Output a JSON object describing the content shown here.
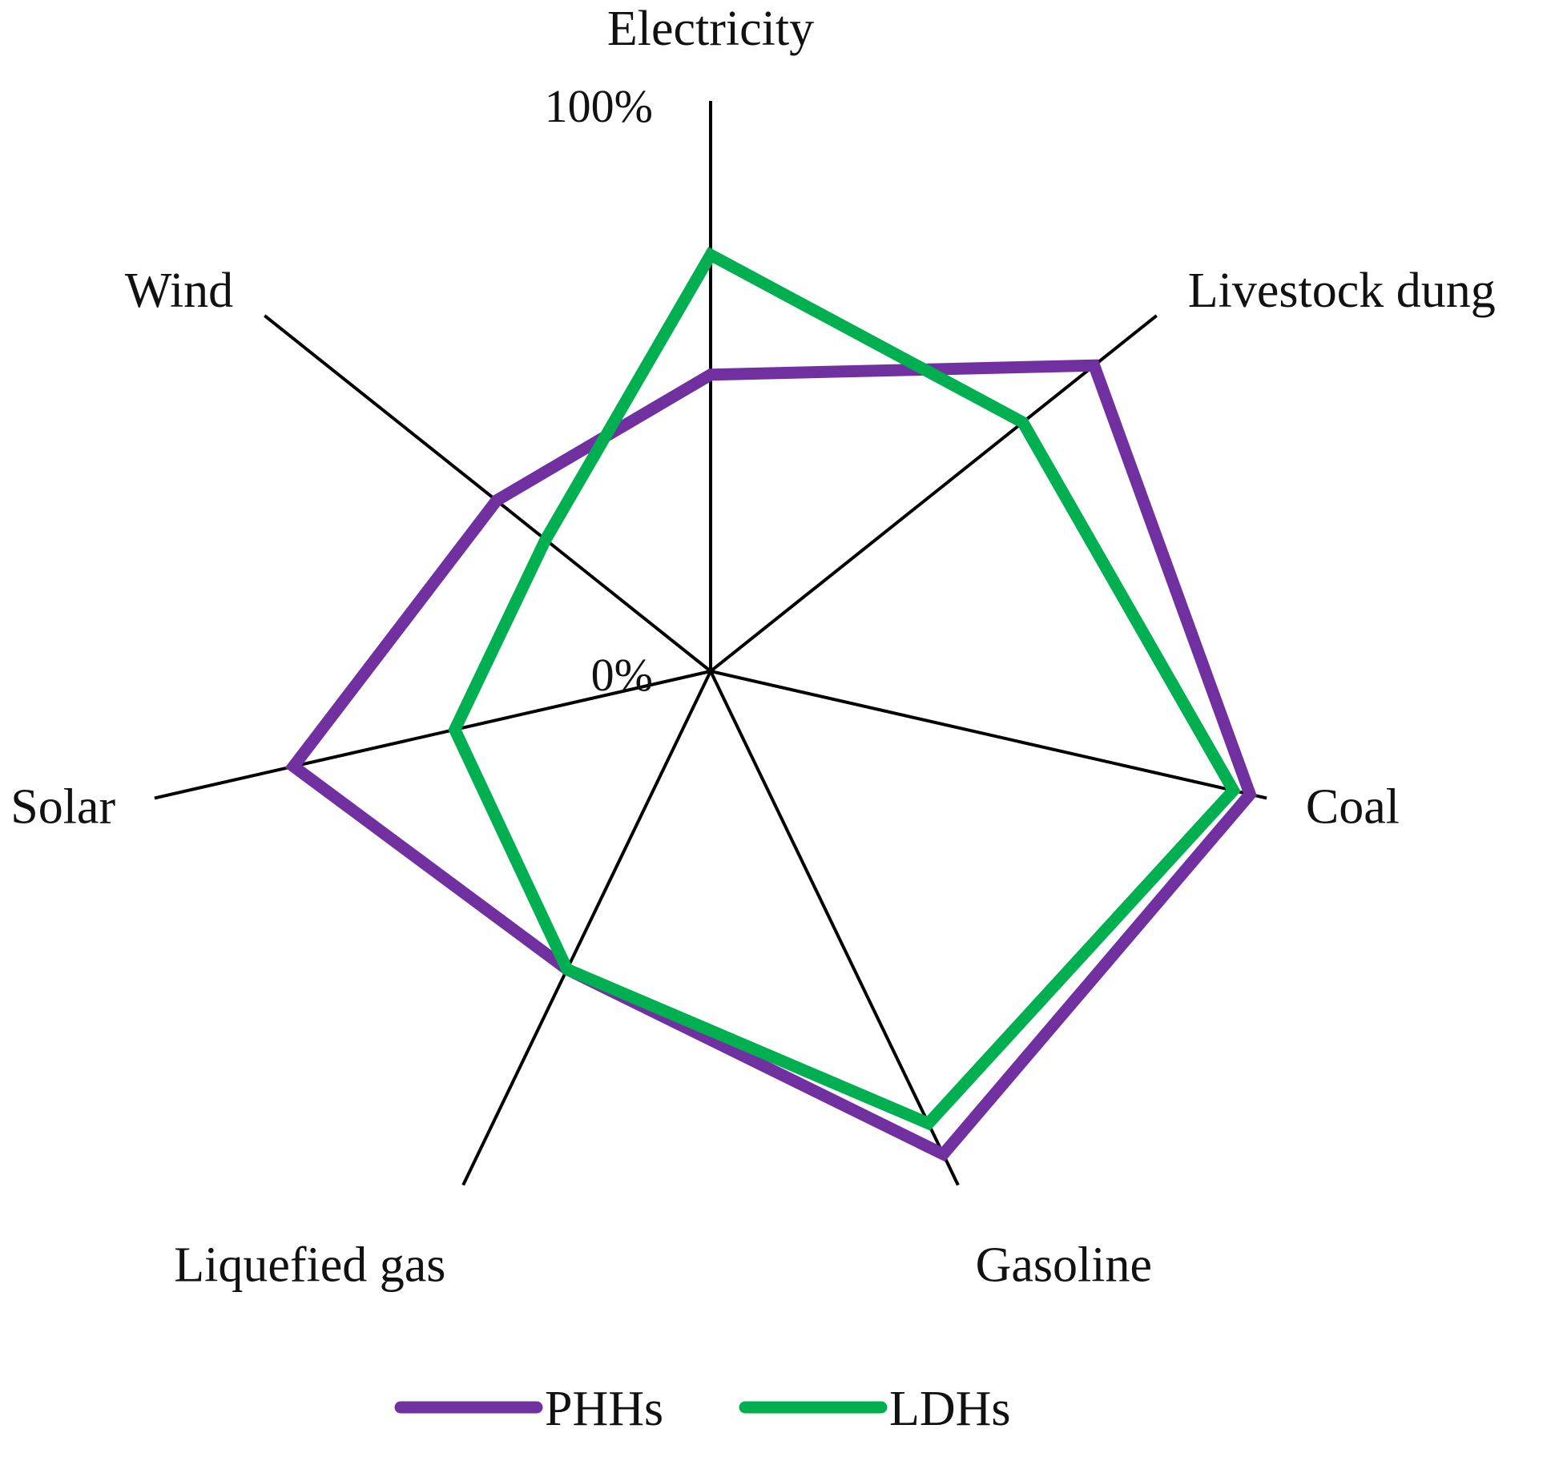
{
  "chart_data": {
    "type": "radar",
    "axes": [
      "Electricity",
      "Livestock dung",
      "Coal",
      "Gasoline",
      "Liquefied gas",
      "Solar",
      "Wind"
    ],
    "range": [
      0,
      100
    ],
    "scale_labels": {
      "min": "0%",
      "max": "100%"
    },
    "legend_position": "bottom",
    "series": [
      {
        "name": "PHHs",
        "color": "#7030A0",
        "values": [
          52,
          86,
          97,
          94,
          58,
          75,
          48
        ]
      },
      {
        "name": "LDHs",
        "color": "#00B050",
        "values": [
          73,
          70,
          94,
          88,
          58,
          46,
          37
        ]
      }
    ]
  }
}
